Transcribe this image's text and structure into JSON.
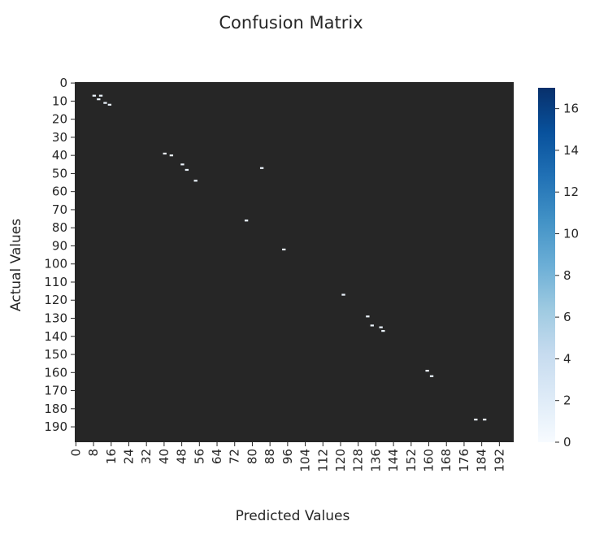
{
  "chart_data": {
    "type": "heatmap",
    "title": "Confusion Matrix",
    "xlabel": "Predicted Values",
    "ylabel": "Actual Values",
    "matrix_size": 199,
    "x_tick_labels": [
      "0",
      "8",
      "16",
      "24",
      "32",
      "40",
      "48",
      "56",
      "64",
      "72",
      "80",
      "88",
      "96",
      "104",
      "112",
      "120",
      "128",
      "136",
      "144",
      "152",
      "160",
      "168",
      "176",
      "184",
      "192"
    ],
    "y_tick_labels": [
      "0",
      "10",
      "20",
      "30",
      "40",
      "50",
      "60",
      "70",
      "80",
      "90",
      "100",
      "110",
      "120",
      "130",
      "140",
      "150",
      "160",
      "170",
      "180",
      "190"
    ],
    "colorbar": {
      "min": 0,
      "max": 17,
      "ticks": [
        "0",
        "2",
        "4",
        "6",
        "8",
        "10",
        "12",
        "14",
        "16"
      ],
      "colormap": "Blues",
      "color_low": "#f7fbff",
      "color_high": "#08306b"
    },
    "background_color": "#262626",
    "nonzero_cells": [
      {
        "row": 7,
        "col": 8,
        "value": 1
      },
      {
        "row": 7,
        "col": 11,
        "value": 1
      },
      {
        "row": 9,
        "col": 10,
        "value": 1
      },
      {
        "row": 11,
        "col": 13,
        "value": 1
      },
      {
        "row": 12,
        "col": 15,
        "value": 1
      },
      {
        "row": 39,
        "col": 40,
        "value": 1
      },
      {
        "row": 40,
        "col": 43,
        "value": 1
      },
      {
        "row": 45,
        "col": 48,
        "value": 1
      },
      {
        "row": 47,
        "col": 84,
        "value": 1
      },
      {
        "row": 48,
        "col": 50,
        "value": 1
      },
      {
        "row": 54,
        "col": 54,
        "value": 1
      },
      {
        "row": 76,
        "col": 77,
        "value": 1
      },
      {
        "row": 92,
        "col": 94,
        "value": 1
      },
      {
        "row": 117,
        "col": 121,
        "value": 1
      },
      {
        "row": 129,
        "col": 132,
        "value": 1
      },
      {
        "row": 134,
        "col": 134,
        "value": 1
      },
      {
        "row": 135,
        "col": 138,
        "value": 1
      },
      {
        "row": 137,
        "col": 139,
        "value": 1
      },
      {
        "row": 159,
        "col": 159,
        "value": 1
      },
      {
        "row": 162,
        "col": 161,
        "value": 1
      },
      {
        "row": 186,
        "col": 181,
        "value": 1
      },
      {
        "row": 186,
        "col": 185,
        "value": 1
      }
    ]
  }
}
